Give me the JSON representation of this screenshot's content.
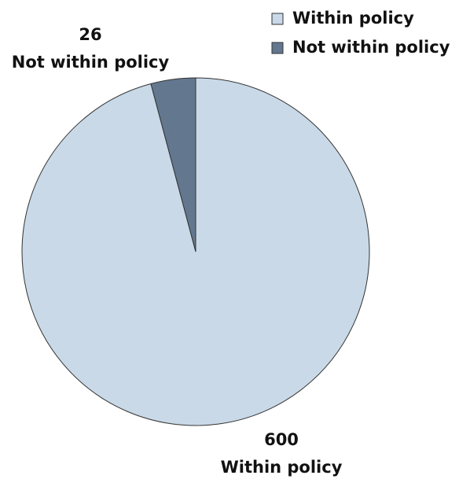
{
  "chart_data": {
    "type": "pie",
    "categories": [
      "Within policy",
      "Not within policy"
    ],
    "values": [
      600,
      26
    ],
    "colors": [
      "#c9d9e8",
      "#63788f"
    ],
    "legend": "top-right"
  }
}
